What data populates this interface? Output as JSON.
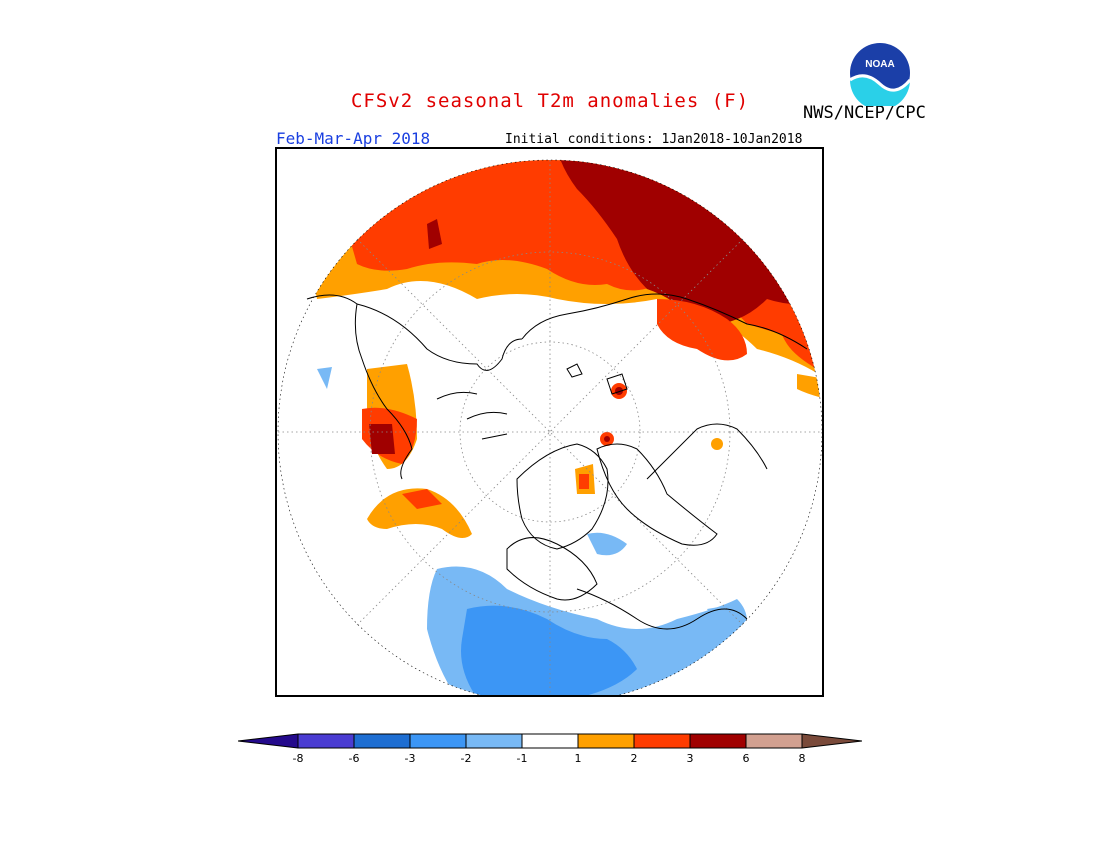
{
  "header": {
    "title": "CFSv2 seasonal T2m anomalies (F)",
    "period": "Feb-Mar-Apr 2018",
    "initial_conditions": "Initial conditions: 1Jan2018-10Jan2018",
    "agency": "NWS/NCEP/CPC",
    "logo_text": "NOAA"
  },
  "colorbar": {
    "tick_labels": [
      "-8",
      "-6",
      "-3",
      "-2",
      "-1",
      "1",
      "2",
      "3",
      "6",
      "8"
    ],
    "colors": {
      "lt_minus8": "#240a8c",
      "m8_m6": "#4a3cd2",
      "m6_m3": "#1e6ed2",
      "m3_m2": "#3c96f5",
      "m2_m1": "#78b9f5",
      "m1_p1": "#ffffff",
      "p1_p2": "#ffa000",
      "p2_p3": "#ff3c00",
      "p3_p6": "#a00000",
      "p6_p8": "#d2a090",
      "gt_p8": "#7a4a3a"
    }
  },
  "map": {
    "projection": "north-polar-stereographic"
  }
}
